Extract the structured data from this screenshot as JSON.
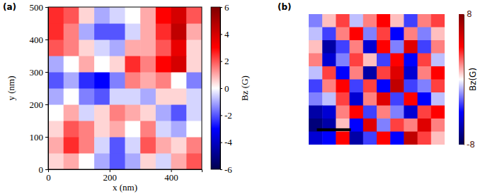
{
  "chart_data": [
    {
      "type": "heatmap",
      "panel_label": "(a)",
      "x": [
        25,
        75,
        125,
        175,
        225,
        275,
        325,
        375,
        425,
        475
      ],
      "y": [
        25,
        75,
        125,
        175,
        225,
        275,
        325,
        375,
        425,
        475
      ],
      "z": [
        [
          0.5,
          1,
          0,
          -1,
          -2,
          -1,
          0.5,
          -0.5,
          1,
          2
        ],
        [
          1,
          2.5,
          1.5,
          -0.5,
          -2,
          -0.5,
          2,
          1,
          0.5,
          1.5
        ],
        [
          0.5,
          2,
          1.5,
          0.5,
          1,
          0,
          1.5,
          -0.5,
          -1,
          0
        ],
        [
          0,
          1,
          -0.5,
          0.5,
          1.5,
          1,
          0.5,
          -1,
          -2,
          -0.5
        ],
        [
          -1,
          0,
          -1.5,
          -2,
          -0.5,
          -0.5,
          -1,
          0.5,
          0.5,
          -0.5
        ],
        [
          -2,
          -1,
          -2.5,
          -3,
          -1.5,
          1.5,
          1,
          1.5,
          0,
          -1.5
        ],
        [
          -1,
          0,
          1,
          0,
          0.5,
          2.5,
          1.5,
          3,
          4,
          0.5
        ],
        [
          2,
          1.5,
          0.5,
          -0.5,
          -1,
          1,
          1,
          2,
          3.5,
          0.5
        ],
        [
          2.5,
          1.5,
          -1,
          -2,
          -2,
          -0.5,
          1,
          2.5,
          4.5,
          1
        ],
        [
          2.5,
          2,
          0.5,
          -1,
          -0.5,
          0,
          1,
          3,
          4,
          2
        ]
      ],
      "xlim": [
        0,
        500
      ],
      "ylim": [
        0,
        500
      ],
      "xticks": [
        0,
        200,
        400
      ],
      "yticks": [
        0,
        100,
        200,
        300,
        400,
        500
      ],
      "x_label": "x (nm)",
      "y_label": "y (nm)",
      "colorbar": {
        "label": "Bz (G)",
        "range": [
          -6,
          6
        ],
        "ticks": [
          -6,
          -4,
          -2,
          0,
          2,
          4,
          6
        ]
      }
    },
    {
      "type": "heatmap",
      "panel_label": "(b)",
      "tick_labels": false,
      "z": [
        [
          -2,
          1,
          3,
          -1,
          2,
          4,
          1,
          -3,
          2,
          3
        ],
        [
          -1,
          -3,
          2,
          4,
          -2,
          3,
          -4,
          2,
          -2,
          1
        ],
        [
          1,
          -6,
          -3,
          2,
          -5,
          4,
          -2,
          5,
          -3,
          2
        ],
        [
          2,
          -5,
          -2,
          3,
          1,
          -3,
          4,
          -4,
          3,
          -1
        ],
        [
          -1,
          3,
          -4,
          2,
          -6,
          3,
          5,
          -5,
          2,
          4
        ],
        [
          -3,
          2,
          4,
          -3,
          3,
          -4,
          6,
          -3,
          -2,
          3
        ],
        [
          -2,
          -1,
          3,
          -5,
          2,
          5,
          -3,
          4,
          -4,
          -1
        ],
        [
          -6,
          -5,
          2,
          4,
          -3,
          2,
          -2,
          -5,
          3,
          4
        ],
        [
          -7,
          -6,
          1,
          -4,
          5,
          -2,
          3,
          2,
          5,
          2
        ],
        [
          -5,
          -4,
          4,
          -6,
          -3,
          4,
          -4,
          6,
          3,
          1
        ]
      ],
      "colorbar": {
        "label": "Bz(G)",
        "range": [
          -8,
          8
        ],
        "ticks": [
          -8,
          8
        ]
      }
    }
  ]
}
